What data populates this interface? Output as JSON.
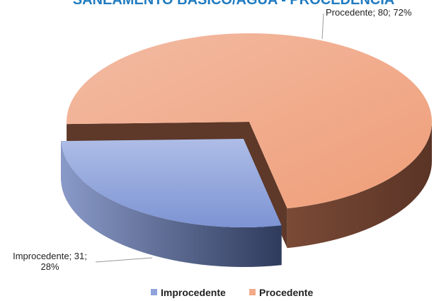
{
  "chart_data": {
    "type": "pie3d",
    "title": "SANEAMENTO BÁSICO/ÁGUA - PROCEDÊNCIA",
    "categories": [
      "Improcedente",
      "Procedente"
    ],
    "values": [
      31,
      80
    ],
    "percents": [
      28,
      72
    ],
    "value_labels": [
      "Improcedente; 31; 28%",
      "Procedente; 80; 72%"
    ],
    "colors": [
      "#8fa3db",
      "#f2aa88"
    ],
    "legend": "bottom"
  }
}
